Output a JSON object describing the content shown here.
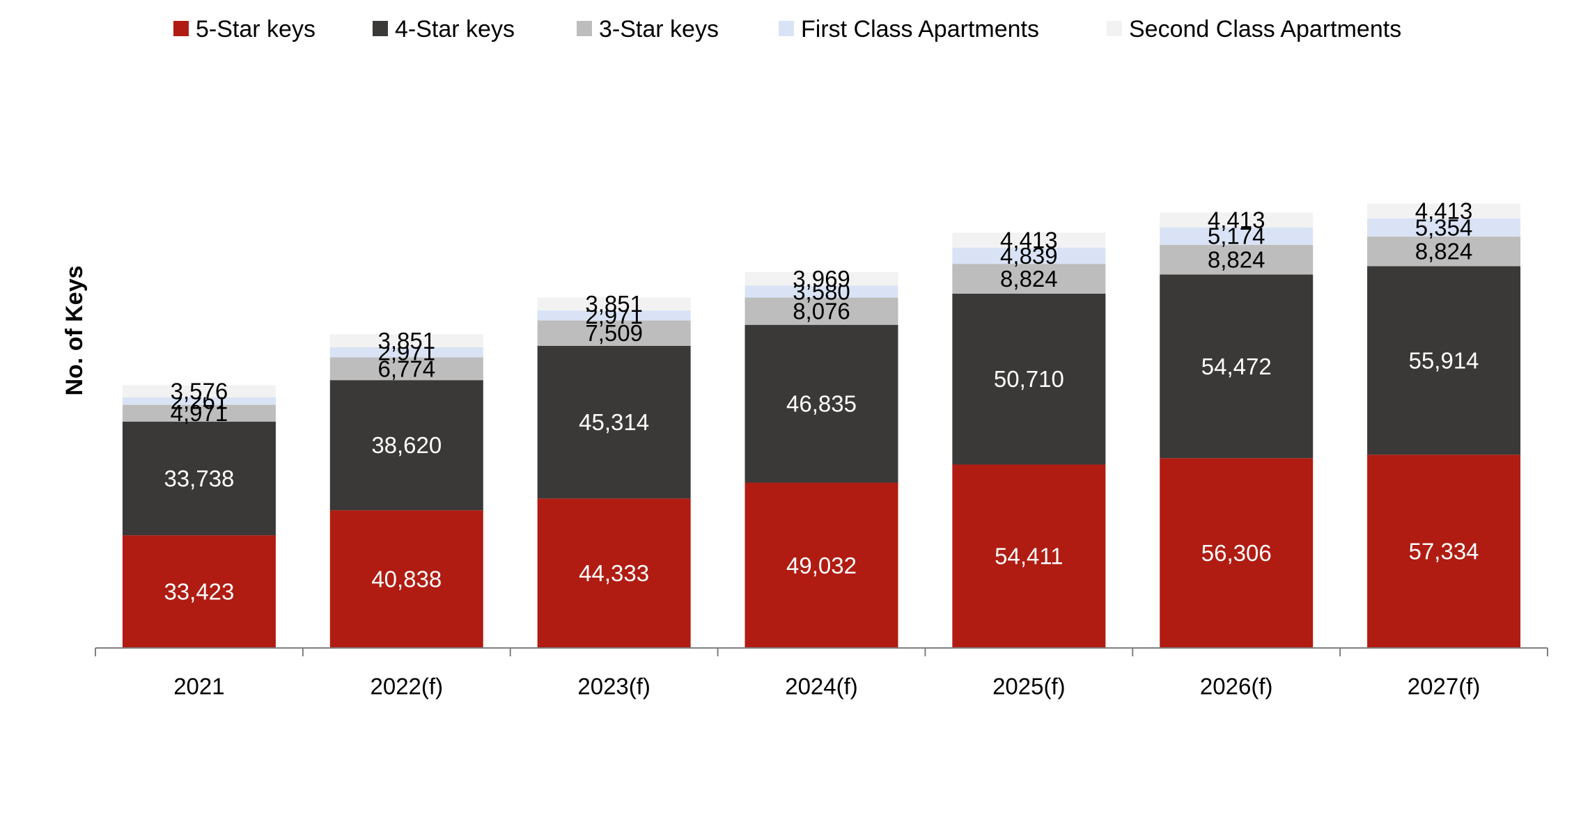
{
  "chart_data": {
    "type": "bar",
    "stacked": true,
    "xlabel": "",
    "ylabel": "No. of Keys",
    "ylim": [
      0,
      185000
    ],
    "grid": false,
    "legend_position": "top",
    "categories": [
      "2021",
      "2022(f)",
      "2023(f)",
      "2024(f)",
      "2025(f)",
      "2026(f)",
      "2027(f)"
    ],
    "series": [
      {
        "name": "5-Star keys",
        "color": "#b01c12",
        "label_color": "#ffffff",
        "values": [
          33423,
          40838,
          44333,
          49032,
          54411,
          56306,
          57334
        ]
      },
      {
        "name": "4-Star keys",
        "color": "#3a3938",
        "label_color": "#ffffff",
        "values": [
          33738,
          38620,
          45314,
          46835,
          50710,
          54472,
          55914
        ]
      },
      {
        "name": "3-Star keys",
        "color": "#bdbdbd",
        "label_color": "#000000",
        "values": [
          4971,
          6774,
          7509,
          8076,
          8824,
          8824,
          8824
        ]
      },
      {
        "name": "First Class Apartments",
        "color": "#d9e3f5",
        "label_color": "#000000",
        "values": [
          2261,
          2971,
          2971,
          3580,
          4839,
          5174,
          5354
        ]
      },
      {
        "name": "Second Class Apartments",
        "color": "#f2f2f2",
        "label_color": "#000000",
        "values": [
          3576,
          3851,
          3851,
          3969,
          4413,
          4413,
          4413
        ]
      }
    ]
  }
}
